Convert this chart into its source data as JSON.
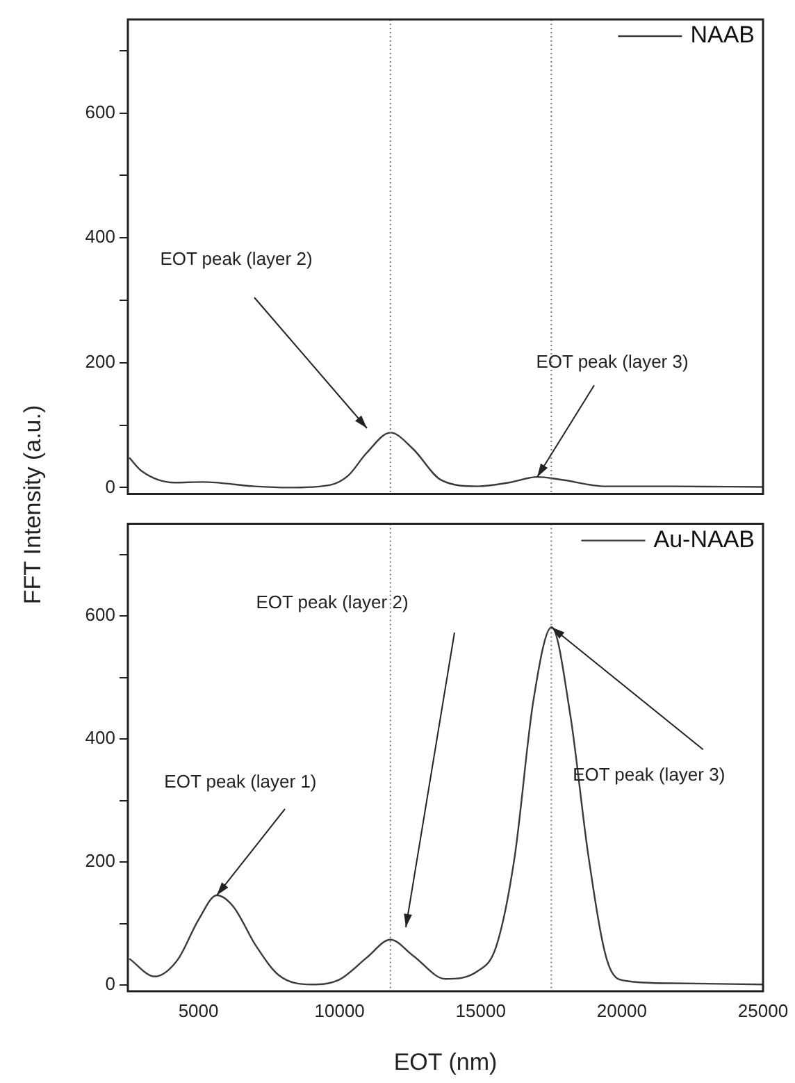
{
  "chart_data": [
    {
      "type": "line",
      "ylabel": "FFT Intensity (a.u.)",
      "legend": "top right",
      "tick_labels": "y",
      "marker": "none",
      "line_style": "solid",
      "xlim": [
        2500,
        25000
      ],
      "ylim": [
        -10,
        750
      ],
      "yticks": [
        0,
        {
          "value": 100,
          "label": null
        },
        200,
        {
          "value": 300,
          "label": null
        },
        400,
        {
          "value": 500,
          "label": null
        },
        600,
        {
          "value": 700,
          "label": null
        }
      ],
      "series": [
        {
          "name": "NAAB",
          "color": "#3a3a3a",
          "x": [
            2550,
            3000,
            4150,
            5150,
            7000,
            8200,
            9650,
            10300,
            10950,
            11800,
            12600,
            13600,
            14900,
            16000,
            17000,
            17800,
            19450,
            21700,
            25000
          ],
          "values": [
            48,
            26,
            8,
            9,
            2,
            0,
            4,
            19,
            55,
            88,
            62,
            12,
            2,
            8,
            17,
            13,
            2,
            2,
            1
          ]
        }
      ],
      "ref_lines": [
        {
          "axis": "x",
          "value": 11800,
          "line_style": "dotted",
          "color": "#777777"
        },
        {
          "axis": "x",
          "value": 17500,
          "line_style": "dotted",
          "color": "#777777"
        }
      ],
      "annotations": [
        "EOT peak (layer 2)",
        {
          "text": "EOT peak (layer 3)",
          "x": 17000,
          "y": 17
        }
      ]
    },
    {
      "type": "line",
      "xlabel": "EOT (nm)",
      "legend": "top right",
      "marker": "none",
      "line_style": "solid",
      "xlim": [
        2500,
        25000
      ],
      "xticks": [
        5000,
        10000,
        15000,
        20000,
        25000
      ],
      "ylim": [
        -10,
        750
      ],
      "yticks": [
        0,
        {
          "value": 100,
          "label": null
        },
        200,
        {
          "value": 300,
          "label": null
        },
        400,
        {
          "value": 500,
          "label": null
        },
        600,
        {
          "value": 700,
          "label": null
        }
      ],
      "series": [
        {
          "name": "Au-NAAB",
          "color": "#3a3a3a",
          "x": [
            2550,
            3450,
            4260,
            5000,
            5650,
            6230,
            7050,
            7850,
            9000,
            10000,
            10970,
            11800,
            12600,
            13750,
            14900,
            15550,
            16200,
            16860,
            17510,
            18170,
            18820,
            19470,
            20130,
            21760,
            25000
          ],
          "values": [
            43,
            14,
            41,
            106,
            146,
            128,
            63,
            16,
            1,
            9,
            45,
            74,
            48,
            10,
            23,
            63,
            208,
            461,
            582,
            440,
            208,
            41,
            7,
            3,
            1
          ]
        }
      ],
      "ref_lines": [
        {
          "axis": "x",
          "value": 11800,
          "line_style": "dotted",
          "color": "#777777"
        },
        {
          "axis": "x",
          "value": 17500,
          "line_style": "dotted",
          "color": "#777777"
        }
      ],
      "annotations": [
        {
          "text": "EOT peak (layer 1)",
          "x": 5650,
          "y": 146
        },
        "EOT peak (layer 2)",
        {
          "text": "EOT peak (layer 3)",
          "x": 17510,
          "y": 582
        }
      ]
    }
  ]
}
